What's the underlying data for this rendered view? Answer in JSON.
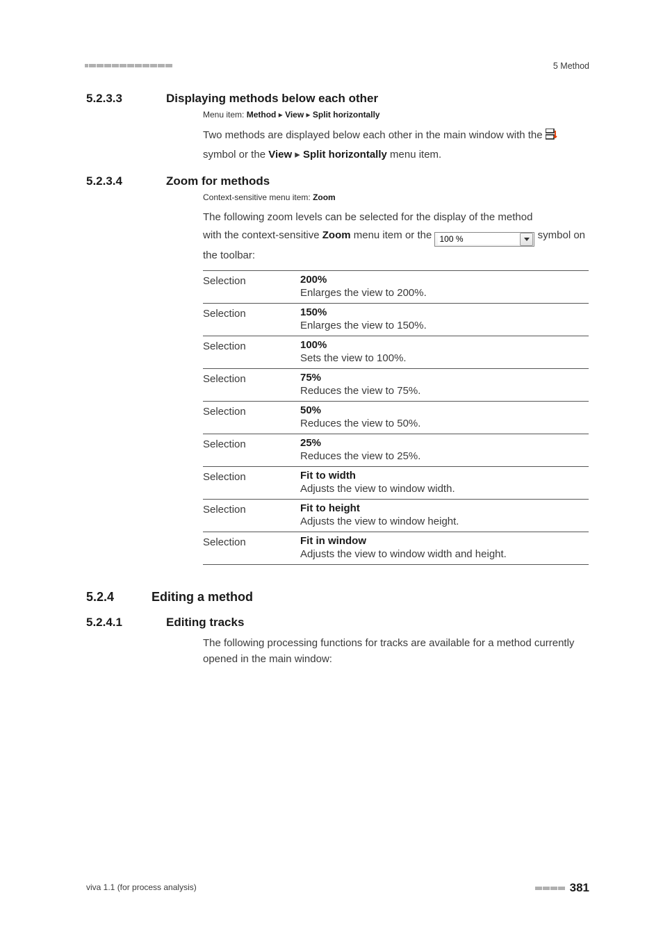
{
  "header": {
    "topic": "5 Method"
  },
  "sec_5_2_3_3": {
    "num": "5.2.3.3",
    "title": "Displaying methods below each other",
    "menu_prefix": "Menu item: ",
    "menu_b1": "Method",
    "menu_sep": " ▸ ",
    "menu_b2": "View",
    "menu_b3": "Split horizontally",
    "body_part1": "Two methods are displayed below each other in the main window with the ",
    "body_part2": " symbol or the ",
    "body_b1": "View",
    "body_sep": " ▸ ",
    "body_b2": "Split horizontally",
    "body_part3": " menu item."
  },
  "sec_5_2_3_4": {
    "num": "5.2.3.4",
    "title": "Zoom for methods",
    "menu_prefix": "Context-sensitive menu item: ",
    "menu_b1": "Zoom",
    "body_line1": "The following zoom levels can be selected for the display of the method",
    "body_part1": "with the context-sensitive ",
    "body_b1": "Zoom",
    "body_part2": " menu item or the ",
    "zoom_value": "100 %",
    "body_part3": " symbol on the toolbar:"
  },
  "zoom_table": {
    "label": "Selection",
    "rows": [
      {
        "title": "200%",
        "desc": "Enlarges the view to 200%."
      },
      {
        "title": "150%",
        "desc": "Enlarges the view to 150%."
      },
      {
        "title": "100%",
        "desc": "Sets the view to 100%."
      },
      {
        "title": "75%",
        "desc": "Reduces the view to 75%."
      },
      {
        "title": "50%",
        "desc": "Reduces the view to 50%."
      },
      {
        "title": "25%",
        "desc": "Reduces the view to 25%."
      },
      {
        "title": "Fit to width",
        "desc": "Adjusts the view to window width."
      },
      {
        "title": "Fit to height",
        "desc": "Adjusts the view to window height."
      },
      {
        "title": "Fit in window",
        "desc": "Adjusts the view to window width and height."
      }
    ]
  },
  "sec_5_2_4": {
    "num": "5.2.4",
    "title": "Editing a method"
  },
  "sec_5_2_4_1": {
    "num": "5.2.4.1",
    "title": "Editing tracks",
    "body": "The following processing functions for tracks are available for a method currently opened in the main window:"
  },
  "footer": {
    "left": "viva 1.1 (for process analysis)",
    "page": "381"
  },
  "colors": {
    "text_body": "#3a3a3a",
    "text_heading": "#1a1a1a",
    "rule": "#555555",
    "mark": "#b0b0b0",
    "bg": "#ffffff"
  }
}
